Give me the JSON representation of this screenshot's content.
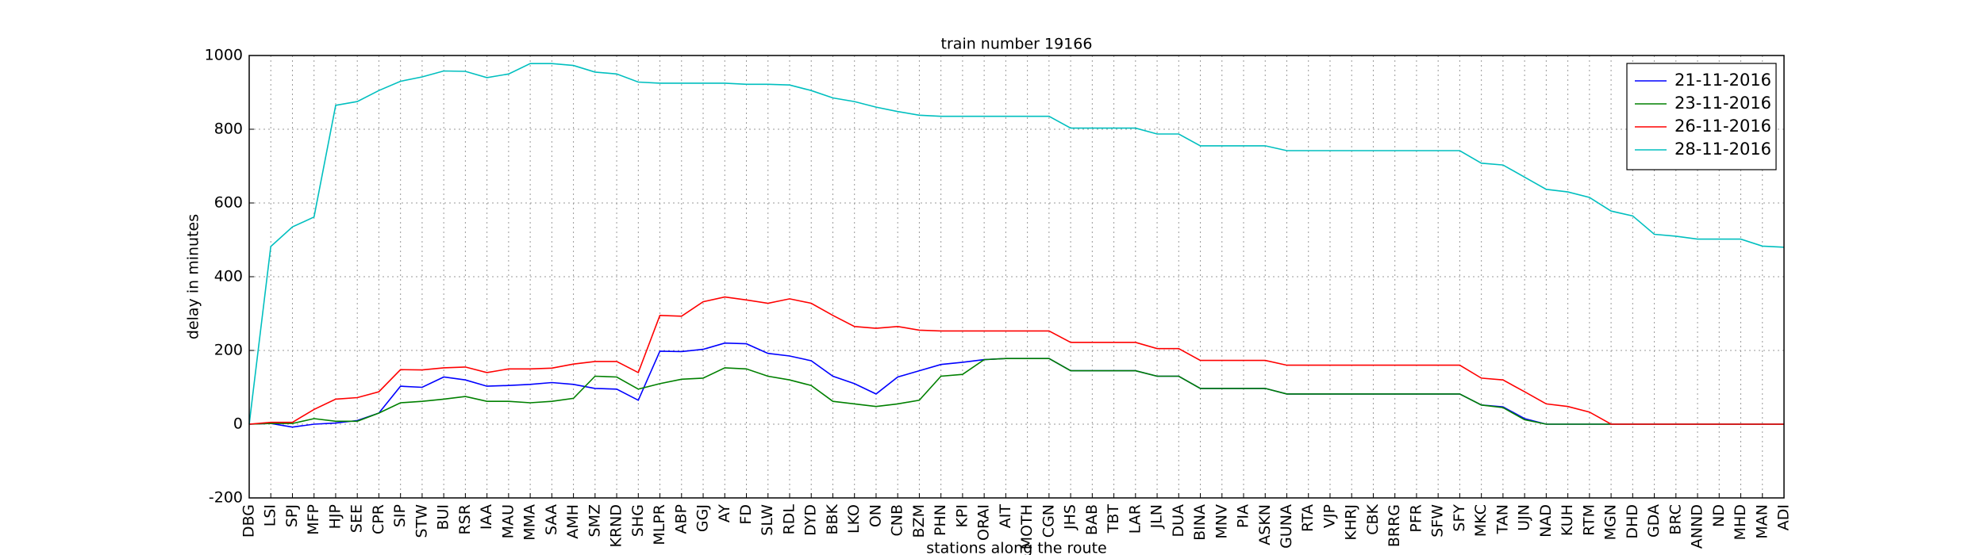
{
  "chart_data": {
    "type": "line",
    "title": "train number 19166",
    "x_label": "stations along the route",
    "y_label": "delay in minutes",
    "categories": [
      "DBG",
      "LSI",
      "SPJ",
      "MFP",
      "HJP",
      "SEE",
      "CPR",
      "SIP",
      "STW",
      "BUI",
      "RSR",
      "IAA",
      "MAU",
      "MMA",
      "SAA",
      "AMH",
      "SMZ",
      "KRND",
      "SHG",
      "MLPR",
      "ABP",
      "GGJ",
      "AY",
      "FD",
      "SLW",
      "RDL",
      "DYD",
      "BBK",
      "LKO",
      "ON",
      "CNB",
      "BZM",
      "PHN",
      "KPI",
      "ORAI",
      "AIT",
      "MOTH",
      "CGN",
      "JHS",
      "BAB",
      "TBT",
      "LAR",
      "JLN",
      "DUA",
      "BINA",
      "MNV",
      "PIA",
      "ASKN",
      "GUNA",
      "RTA",
      "VJP",
      "KHRJ",
      "CBK",
      "BRRG",
      "PFR",
      "SFW",
      "SFY",
      "MKC",
      "TAN",
      "UJN",
      "NAD",
      "KUH",
      "RTM",
      "MGN",
      "DHD",
      "GDA",
      "BRC",
      "ANND",
      "ND",
      "MHD",
      "MAN",
      "ADI"
    ],
    "series": [
      {
        "name": "21-11-2016",
        "color": "#0000ff",
        "values": [
          0,
          2,
          -8,
          0,
          3,
          10,
          30,
          103,
          100,
          128,
          120,
          103,
          105,
          108,
          113,
          108,
          97,
          95,
          65,
          198,
          197,
          203,
          220,
          218,
          192,
          185,
          172,
          130,
          110,
          82,
          128,
          145,
          162,
          168,
          175,
          178,
          178,
          178,
          145,
          145,
          145,
          145,
          130,
          130,
          97,
          97,
          97,
          97,
          82,
          82,
          82,
          82,
          82,
          82,
          82,
          82,
          82,
          52,
          47,
          15,
          0,
          0,
          0,
          0,
          0,
          0,
          0,
          0,
          0,
          0,
          0,
          0
        ]
      },
      {
        "name": "23-11-2016",
        "color": "#008000",
        "values": [
          0,
          2,
          2,
          15,
          8,
          8,
          30,
          58,
          62,
          68,
          75,
          62,
          62,
          58,
          62,
          70,
          130,
          128,
          95,
          110,
          122,
          125,
          153,
          150,
          130,
          120,
          105,
          62,
          55,
          48,
          55,
          65,
          130,
          135,
          175,
          178,
          178,
          178,
          145,
          145,
          145,
          145,
          130,
          130,
          97,
          97,
          97,
          97,
          82,
          82,
          82,
          82,
          82,
          82,
          82,
          82,
          82,
          52,
          45,
          12,
          0,
          0,
          0,
          0,
          0,
          0,
          0,
          0,
          0,
          0,
          0,
          0
        ]
      },
      {
        "name": "26-11-2016",
        "color": "#ff0000",
        "values": [
          0,
          5,
          5,
          40,
          68,
          72,
          88,
          148,
          147,
          153,
          155,
          140,
          150,
          150,
          152,
          163,
          170,
          170,
          140,
          295,
          293,
          332,
          345,
          337,
          328,
          340,
          328,
          295,
          265,
          260,
          265,
          255,
          253,
          253,
          253,
          253,
          253,
          253,
          222,
          222,
          222,
          222,
          205,
          205,
          173,
          173,
          173,
          173,
          160,
          160,
          160,
          160,
          160,
          160,
          160,
          160,
          160,
          125,
          120,
          88,
          55,
          48,
          33,
          0,
          0,
          0,
          0,
          0,
          0,
          0,
          0,
          0
        ]
      },
      {
        "name": "28-11-2016",
        "color": "#00bfbf",
        "values": [
          0,
          482,
          535,
          562,
          865,
          875,
          905,
          930,
          942,
          958,
          957,
          940,
          950,
          978,
          978,
          973,
          955,
          950,
          928,
          925,
          925,
          925,
          925,
          922,
          922,
          920,
          905,
          885,
          875,
          860,
          848,
          838,
          835,
          835,
          835,
          835,
          835,
          835,
          803,
          803,
          803,
          803,
          787,
          787,
          755,
          755,
          755,
          755,
          742,
          742,
          742,
          742,
          742,
          742,
          742,
          742,
          742,
          708,
          703,
          670,
          637,
          630,
          615,
          578,
          565,
          515,
          510,
          502,
          502,
          502,
          483,
          480
        ]
      }
    ],
    "ylim": [
      -200,
      1000
    ],
    "yticks": [
      -200,
      0,
      200,
      400,
      600,
      800,
      1000
    ],
    "grid": true,
    "legend_position": "upper-right"
  }
}
